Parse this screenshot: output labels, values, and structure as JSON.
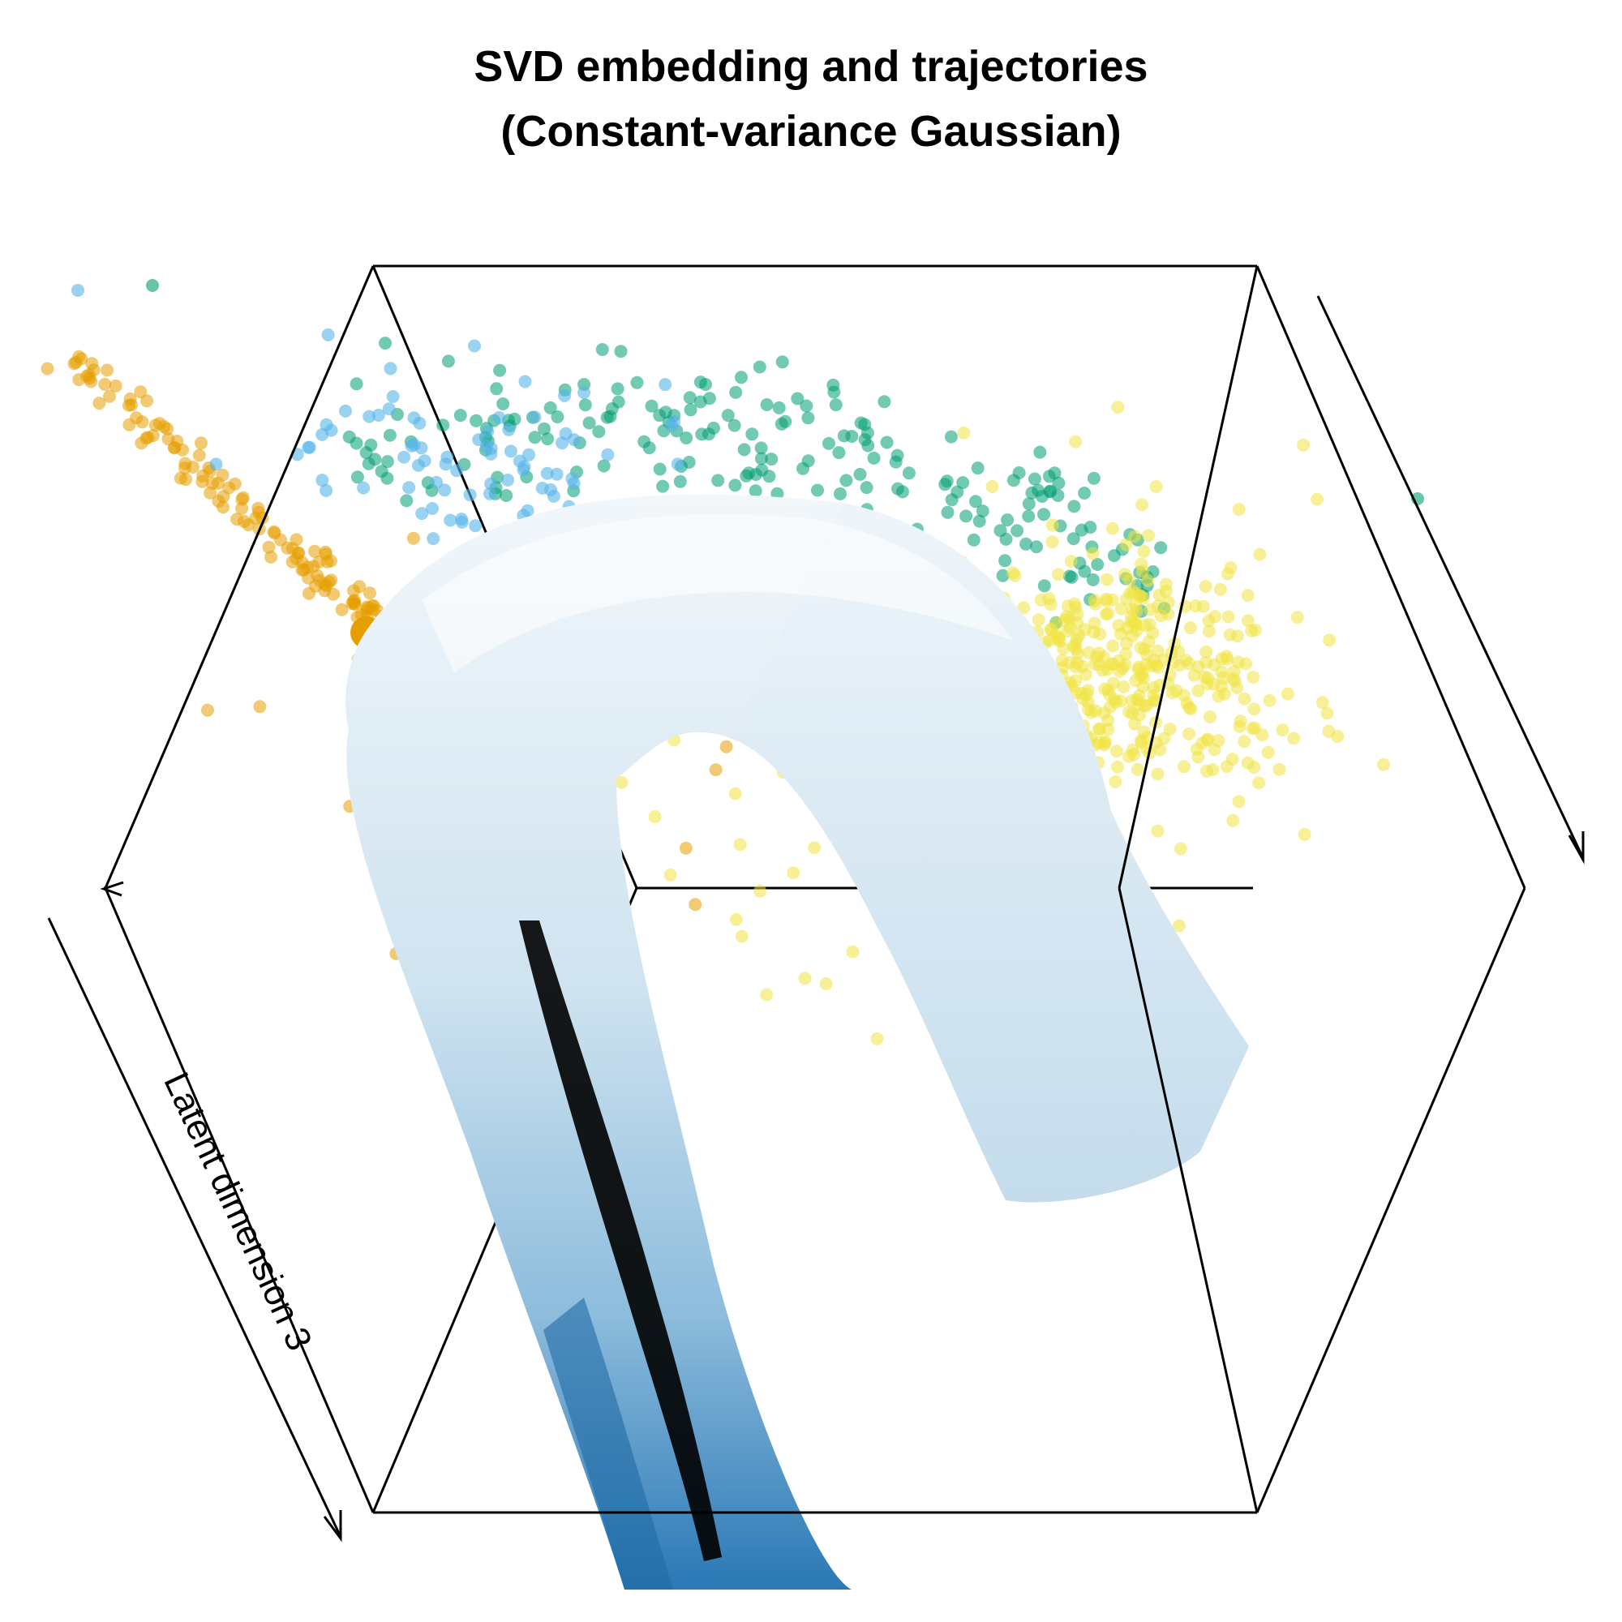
{
  "chart_data": {
    "type": "scatter",
    "projection": "3d",
    "title": [
      "SVD embedding and trajectories",
      "(Constant-variance Gaussian)"
    ],
    "axis_labels": {
      "z": "Latent dimension 3",
      "x": "",
      "y": ""
    },
    "grid": false,
    "legend": "none",
    "box": "3d-wireframe",
    "colors": {
      "orange": "#e69f00",
      "sky": "#56b4e9",
      "green": "#009e73",
      "yellow": "#f0e442",
      "tube_light": "#e8f1f8",
      "tube_mid": "#9cc6e2",
      "tube_dark": "#2a78b6"
    },
    "series": [
      {
        "color": "orange",
        "points": 140
      },
      {
        "color": "sky",
        "points": 80
      },
      {
        "color": "green",
        "points": 220
      },
      {
        "color": "yellow",
        "points": 480
      }
    ],
    "trajectory": {
      "kind": "tube",
      "shade_from": "tube_light",
      "shade_to": "tube_dark"
    }
  }
}
